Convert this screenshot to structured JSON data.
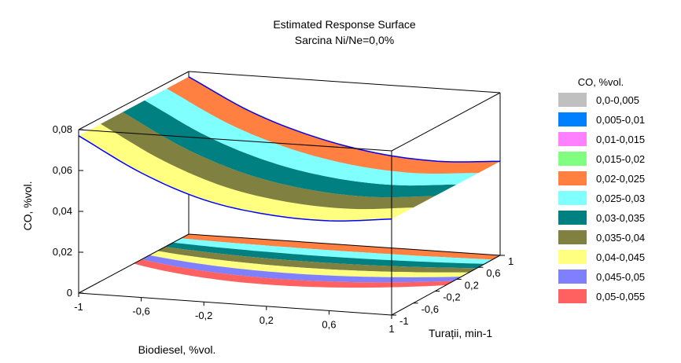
{
  "chart_data": {
    "type": "surface3d",
    "title": "Estimated Response Surface",
    "subtitle": "Sarcina Ni/Ne=0,0%",
    "xlabel": "Biodiesel, %vol.",
    "ylabel": "Turații, min-1",
    "zlabel": "CO, %vol.",
    "x_ticks": [
      "-1",
      "-0,6",
      "-0,2",
      "0,2",
      "0,6",
      "1"
    ],
    "y_ticks": [
      "-1",
      "-0,6",
      "-0,2",
      "0,2",
      "0,6",
      "1"
    ],
    "z_ticks": [
      "0",
      "0,02",
      "0,04",
      "0,06",
      "0,08"
    ],
    "xlim": [
      -1,
      1
    ],
    "ylim": [
      -1,
      1
    ],
    "zlim": [
      0,
      0.08
    ],
    "surface_profile_front": {
      "x": [
        -1,
        -0.6,
        -0.2,
        0.2,
        0.6,
        1
      ],
      "co": [
        0.077,
        0.061,
        0.05,
        0.045,
        0.044,
        0.047
      ]
    },
    "surface_profile_back": {
      "x": [
        -1,
        -0.6,
        -0.2,
        0.2,
        0.6,
        1
      ],
      "co": [
        0.077,
        0.062,
        0.052,
        0.046,
        0.044,
        0.046
      ]
    },
    "legend": {
      "title": "CO, %vol.",
      "position": "right",
      "entries": [
        {
          "label": "0,0-0,005",
          "color": "#c0c0c0"
        },
        {
          "label": "0,005-0,01",
          "color": "#0080ff"
        },
        {
          "label": "0,01-0,015",
          "color": "#ff80ff"
        },
        {
          "label": "0,015-0,02",
          "color": "#80ff80"
        },
        {
          "label": "0,02-0,025",
          "color": "#ff8040"
        },
        {
          "label": "0,025-0,03",
          "color": "#80ffff"
        },
        {
          "label": "0,03-0,035",
          "color": "#008080"
        },
        {
          "label": "0,035-0,04",
          "color": "#808040"
        },
        {
          "label": "0,04-0,045",
          "color": "#ffff80"
        },
        {
          "label": "0,045-0,05",
          "color": "#8080ff"
        },
        {
          "label": "0,05-0,055",
          "color": "#ff6060"
        }
      ]
    },
    "floor_contour_bands": [
      "#ff8040",
      "#80ffff",
      "#008080",
      "#808040",
      "#ffff80",
      "#8080ff",
      "#ff6060"
    ],
    "surface_edge_color": "#0000ff",
    "grid": false
  }
}
